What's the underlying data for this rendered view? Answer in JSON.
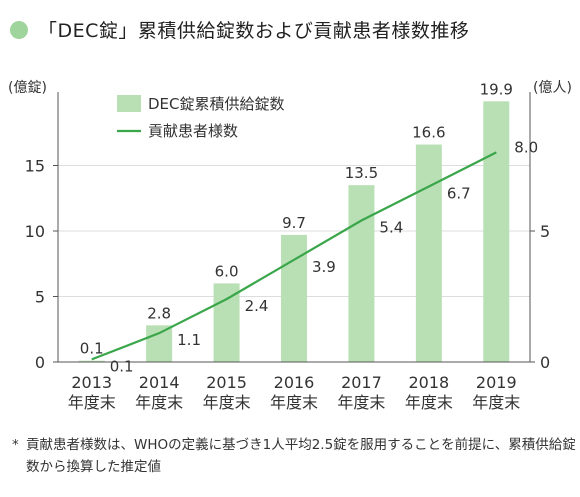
{
  "title": "「DEC錠」累積供給錠数および貢献患者様数推移",
  "footnote_mark": "*",
  "footnote": "貢献患者様数は、WHOの定義に基づき1人平均2.5錠を服用することを前提に、累積供給錠数から換算した推定値",
  "colors": {
    "bar": "#b9e0b5",
    "line": "#3aa64a",
    "title_dot": "#9fd59c"
  },
  "chart_data": {
    "type": "bar",
    "categories": [
      "2013\n年度末",
      "2014\n年度末",
      "2015\n年度末",
      "2016\n年度末",
      "2017\n年度末",
      "2018\n年度末",
      "2019\n年度末"
    ],
    "series": [
      {
        "name": "DEC錠累積供給錠数",
        "type": "bar",
        "axis": "left",
        "values": [
          0.1,
          2.8,
          6.0,
          9.7,
          13.5,
          16.6,
          19.9
        ],
        "labels": [
          "0.1",
          "2.8",
          "6.0",
          "9.7",
          "13.5",
          "16.6",
          "19.9"
        ]
      },
      {
        "name": "貢献患者様数",
        "type": "line",
        "axis": "right",
        "values": [
          0.1,
          1.1,
          2.4,
          3.9,
          5.4,
          6.7,
          8.0
        ],
        "labels": [
          "0.1",
          "1.1",
          "2.4",
          "3.9",
          "5.4",
          "6.7",
          "8.0"
        ]
      }
    ],
    "y_left": {
      "label": "(億錠)",
      "ylim": [
        0,
        20
      ],
      "ticks": [
        0,
        5,
        10,
        15
      ]
    },
    "y_right": {
      "label": "(億人)",
      "ylim": [
        0,
        10
      ],
      "ticks": [
        0,
        5
      ]
    },
    "legend": "top-left"
  }
}
